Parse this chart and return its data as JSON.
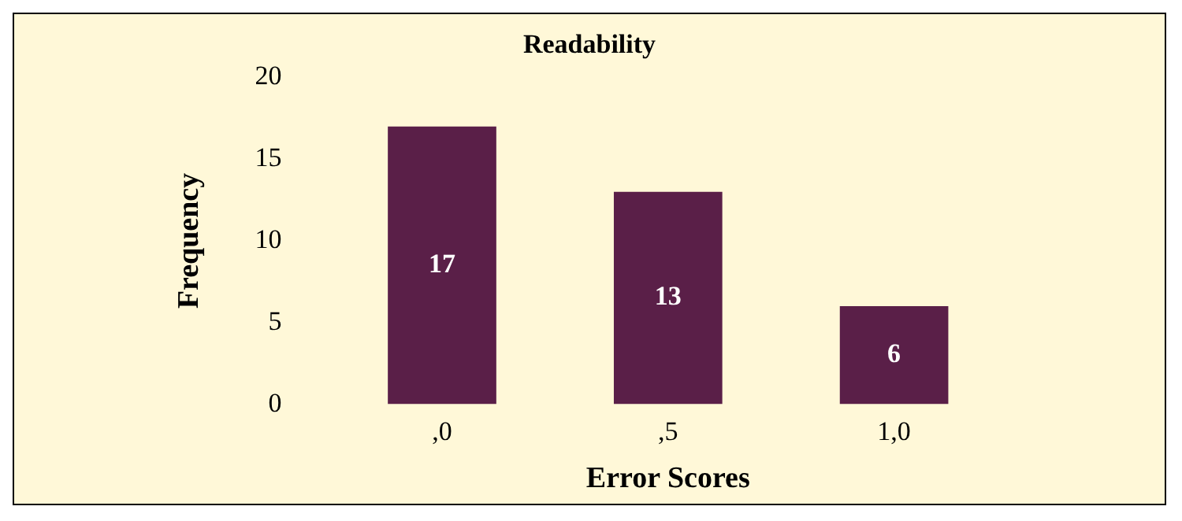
{
  "chart_data": {
    "type": "bar",
    "title": "Readability",
    "xlabel": "Error Scores",
    "ylabel": "Frequency",
    "categories": [
      ",0",
      ",5",
      "1,0"
    ],
    "values": [
      17,
      13,
      6
    ],
    "color": "#5a1f48",
    "ylim": [
      0,
      20
    ],
    "yticks": [
      0,
      5,
      10,
      15,
      20
    ],
    "grid": false,
    "legend": false,
    "data_labels": true
  }
}
